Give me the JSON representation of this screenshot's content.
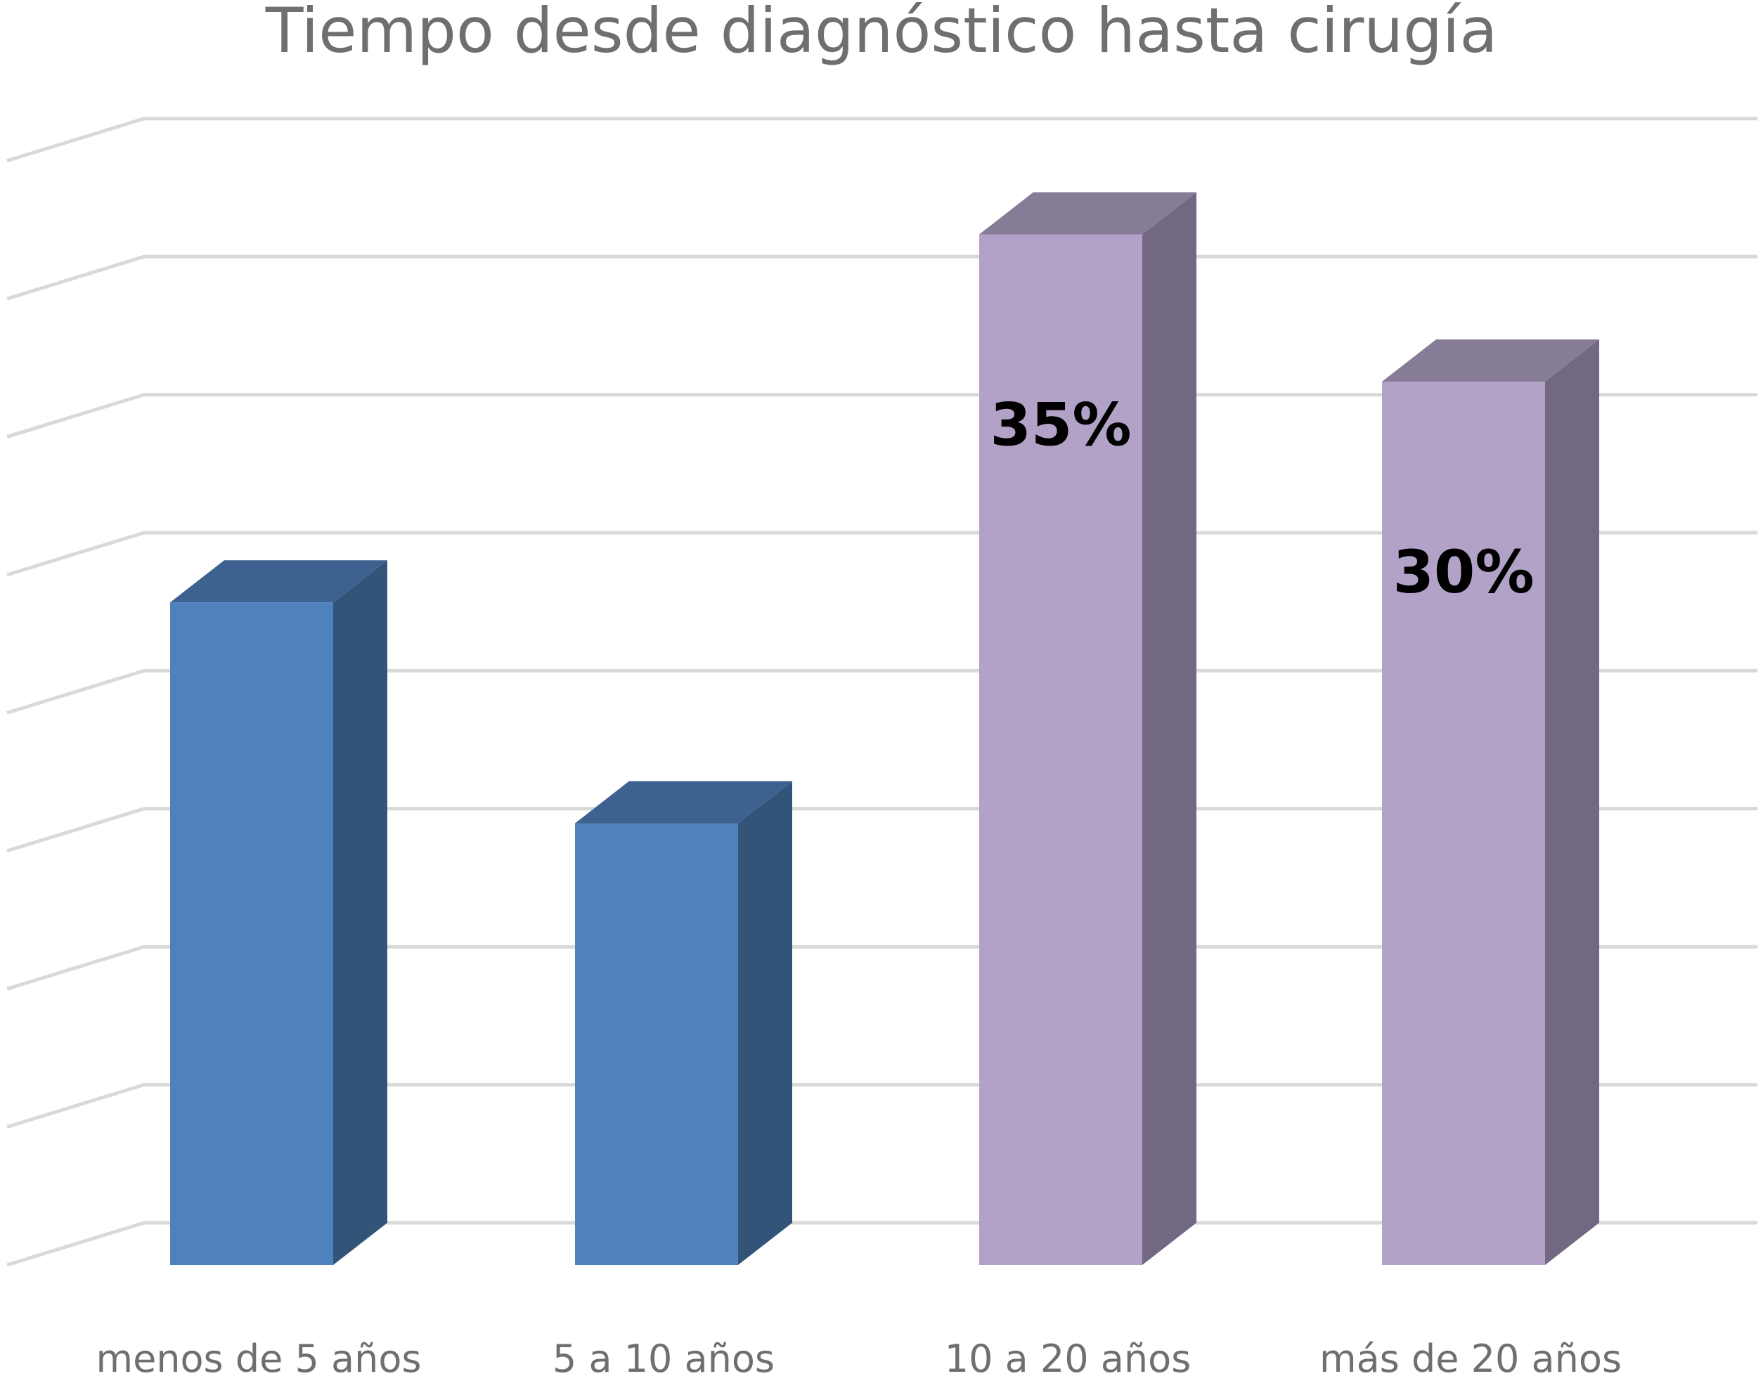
{
  "chart_data": {
    "type": "bar",
    "title": "Tiempo desde diagnóstico hasta cirugía",
    "xlabel": "",
    "ylabel": "",
    "categories": [
      "menos de 5 años",
      "5 a 10 años",
      "10 a 20 años",
      "más de 20 años"
    ],
    "values": [
      22.5,
      15,
      35,
      30
    ],
    "data_labels": [
      "",
      "",
      "35%",
      "30%"
    ],
    "ylim": [
      0,
      37.5
    ],
    "grid": true,
    "legend": "none",
    "style": "3d-column",
    "colors": {
      "blue_front": "#4f81bd",
      "blue_side": "#325479",
      "blue_top": "#3e628f",
      "purple_front": "#b2a2c7",
      "purple_side": "#726882",
      "purple_top": "#877c97",
      "grid": "#d9d9d9",
      "text": "#6f6f6f"
    },
    "bar_color_keys": [
      "blue",
      "blue",
      "purple",
      "purple"
    ]
  }
}
